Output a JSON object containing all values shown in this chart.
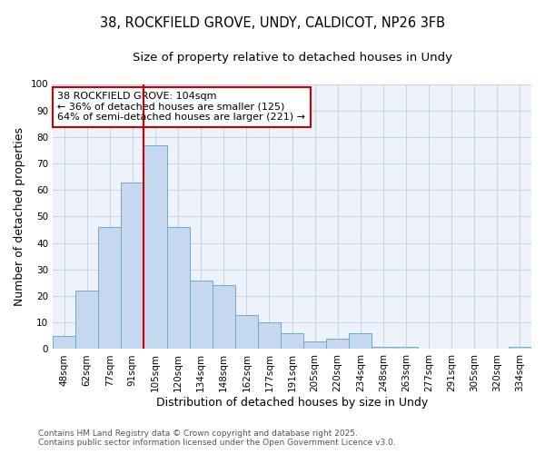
{
  "title_line1": "38, ROCKFIELD GROVE, UNDY, CALDICOT, NP26 3FB",
  "title_line2": "Size of property relative to detached houses in Undy",
  "xlabel": "Distribution of detached houses by size in Undy",
  "ylabel": "Number of detached properties",
  "categories": [
    "48sqm",
    "62sqm",
    "77sqm",
    "91sqm",
    "105sqm",
    "120sqm",
    "134sqm",
    "148sqm",
    "162sqm",
    "177sqm",
    "191sqm",
    "205sqm",
    "220sqm",
    "234sqm",
    "248sqm",
    "263sqm",
    "277sqm",
    "291sqm",
    "305sqm",
    "320sqm",
    "334sqm"
  ],
  "values": [
    5,
    22,
    46,
    63,
    77,
    46,
    26,
    24,
    13,
    10,
    6,
    3,
    4,
    6,
    1,
    1,
    0,
    0,
    0,
    0,
    1
  ],
  "bar_color": "#c5d8f0",
  "bar_edge_color": "#6aabd2",
  "vline_index": 4,
  "vline_color": "#cc0000",
  "annotation_line1": "38 ROCKFIELD GROVE: 104sqm",
  "annotation_line2": "← 36% of detached houses are smaller (125)",
  "annotation_line3": "64% of semi-detached houses are larger (221) →",
  "annotation_box_color": "#cc0000",
  "ylim": [
    0,
    100
  ],
  "yticks": [
    0,
    10,
    20,
    30,
    40,
    50,
    60,
    70,
    80,
    90,
    100
  ],
  "grid_color": "#c8d4e8",
  "background_color": "#eef2fb",
  "footer_line1": "Contains HM Land Registry data © Crown copyright and database right 2025.",
  "footer_line2": "Contains public sector information licensed under the Open Government Licence v3.0.",
  "title1_fontsize": 10.5,
  "title2_fontsize": 9.5,
  "axis_label_fontsize": 9,
  "tick_fontsize": 7.5,
  "annotation_fontsize": 8,
  "footer_fontsize": 6.5
}
